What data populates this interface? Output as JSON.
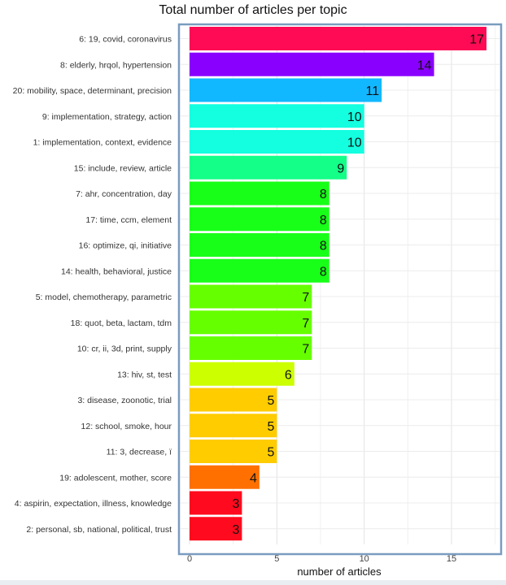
{
  "chart_data": {
    "type": "bar",
    "orientation": "horizontal",
    "title": "Total number of articles per topic",
    "xlabel": "number of articles",
    "ylabel": "",
    "xlim": [
      0,
      17.5
    ],
    "xticks": [
      0,
      5,
      10,
      15
    ],
    "grid": true,
    "categories": [
      "6: 19, covid, coronavirus",
      "8: elderly, hrqol, hypertension",
      "20: mobility, space, determinant, precision",
      "9: implementation, strategy, action",
      "1: implementation, context, evidence",
      "15: include, review, article",
      "7: ahr, concentration, day",
      "17: time, ccm, element",
      "16: optimize, qi, initiative",
      "14: health, behavioral, justice",
      "5: model, chemotherapy, parametric",
      "18: quot, beta, lactam, tdm",
      "10: cr, ii, 3d, print, supply",
      "13: hiv, st, test",
      "3: disease, zoonotic, trial",
      "12: school, smoke, hour",
      "11: 3, decrease, ï",
      "19: adolescent, mother, score",
      "4: aspirin, expectation, illness, knowledge",
      "2: personal, sb, national, political, trust"
    ],
    "values": [
      17,
      14,
      11,
      10,
      10,
      9,
      8,
      8,
      8,
      8,
      7,
      7,
      7,
      6,
      5,
      5,
      5,
      4,
      3,
      3
    ],
    "colors": [
      "#ff0a54",
      "#8a00ff",
      "#12b8ff",
      "#14ffe0",
      "#14ffe0",
      "#14ff88",
      "#18ff18",
      "#18ff18",
      "#18ff18",
      "#18ff18",
      "#66ff00",
      "#66ff00",
      "#66ff00",
      "#ccff00",
      "#ffcc00",
      "#ffcc00",
      "#ffcc00",
      "#ff7000",
      "#ff0a1e",
      "#ff0a1e"
    ]
  }
}
